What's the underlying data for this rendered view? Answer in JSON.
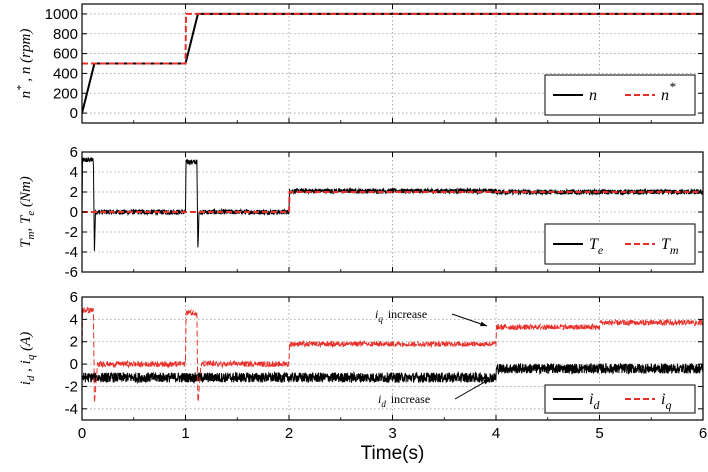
{
  "chart_data": [
    {
      "type": "line",
      "xlim": [
        0,
        6
      ],
      "ylim": [
        -100,
        1100
      ],
      "yticks": [
        0,
        200,
        400,
        600,
        800,
        1000
      ],
      "ylabel": "n*, n (rpm)",
      "grid": true,
      "legend_position": "bottom-right",
      "series": [
        {
          "name": "n",
          "color": "#000000",
          "dash": "solid",
          "x": [
            0,
            0.12,
            1.0,
            1.12,
            6.0
          ],
          "y": [
            0,
            500,
            500,
            1000,
            1000
          ]
        },
        {
          "name": "n*",
          "color": "#e8302a",
          "dash": "dashed",
          "x": [
            0,
            0.005,
            1.0,
            1.005,
            6.0
          ],
          "y": [
            500,
            500,
            500,
            1000,
            1000
          ]
        }
      ]
    },
    {
      "type": "line",
      "xlim": [
        0,
        6
      ],
      "ylim": [
        -6,
        6
      ],
      "yticks": [
        -6,
        -4,
        -2,
        0,
        2,
        4,
        6
      ],
      "ylabel": "Tm, Te (Nm)",
      "grid": true,
      "legend_position": "bottom-right",
      "series": [
        {
          "name": "Te",
          "color": "#000000",
          "dash": "solid",
          "noise": 0.25,
          "x": [
            0,
            0.005,
            0.11,
            0.12,
            0.13,
            1.0,
            1.005,
            1.11,
            1.12,
            1.13,
            2.0,
            2.005,
            4.0,
            4.005,
            6.0
          ],
          "y": [
            0,
            5.2,
            5.2,
            -4.0,
            0,
            0,
            5.0,
            5.0,
            -4.0,
            0,
            0,
            2.1,
            2.1,
            2.0,
            2.0
          ]
        },
        {
          "name": "Tm",
          "color": "#e8302a",
          "dash": "dashed",
          "x": [
            0,
            2.0,
            2.005,
            6.0
          ],
          "y": [
            0,
            0,
            2.0,
            2.0
          ]
        }
      ]
    },
    {
      "type": "line",
      "xlim": [
        0,
        6
      ],
      "ylim": [
        -5,
        6
      ],
      "yticks": [
        -4,
        -2,
        0,
        2,
        4,
        6
      ],
      "ylabel": "id, iq (A)",
      "xlabel": "Time(s)",
      "xticks": [
        0,
        1,
        2,
        3,
        4,
        5,
        6
      ],
      "grid": true,
      "legend_position": "bottom-right",
      "annotations": [
        {
          "sub": "q",
          "text": "increase",
          "x": 4.0,
          "y": 3.0
        },
        {
          "sub": "d",
          "text": "increase",
          "x": 4.0,
          "y": -1.0
        }
      ],
      "series": [
        {
          "name": "id",
          "color": "#000000",
          "dash": "solid",
          "noise": 0.45,
          "x": [
            0,
            4.0,
            4.005,
            6.0
          ],
          "y": [
            -1.2,
            -1.2,
            -0.4,
            -0.4
          ]
        },
        {
          "name": "iq",
          "color": "#e8302a",
          "dash": "dashed",
          "noise": 0.25,
          "x": [
            0,
            0.005,
            0.11,
            0.12,
            0.15,
            1.0,
            1.005,
            1.11,
            1.12,
            1.15,
            2.0,
            2.005,
            4.0,
            4.005,
            5.0,
            5.005,
            6.0
          ],
          "y": [
            0,
            4.8,
            4.8,
            -3.6,
            0,
            0,
            4.6,
            4.6,
            -3.6,
            0,
            0,
            1.8,
            1.8,
            3.3,
            3.3,
            3.7,
            3.7
          ]
        }
      ]
    }
  ]
}
